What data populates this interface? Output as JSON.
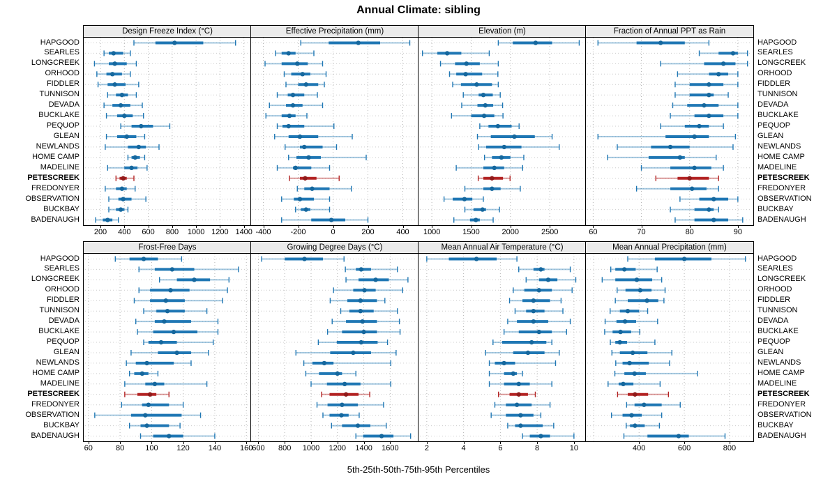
{
  "title": "Annual Climate: sibling",
  "caption": "5th-25th-50th-75th-95th Percentiles",
  "colors": {
    "series": "#1F77B4",
    "series_dot": "#15679D",
    "series_faint": "rgba(31,119,180,0.40)",
    "highlight": "#B22222",
    "highlight_dot": "#8F1A1A",
    "highlight_faint": "rgba(178,34,34,0.45)",
    "grid_line": "#b5b5b5",
    "row_line": "#cccccc",
    "header_bg": "#ebebeb",
    "border": "#000000"
  },
  "chart_data": {
    "type": "dotplot-interval",
    "percentiles": [
      5,
      25,
      50,
      75,
      95
    ],
    "stations": [
      "HAPGOOD",
      "SEARLES",
      "LONGCREEK",
      "ORHOOD",
      "FIDDLER",
      "TUNNISON",
      "DEVADA",
      "BUCKLAKE",
      "PEQUOP",
      "GLEAN",
      "NEWLANDS",
      "HOME CAMP",
      "MADELINE",
      "PETESCREEK",
      "FREDONYER",
      "OBSERVATION",
      "BUCKBAY",
      "BADENAUGH"
    ],
    "highlight_station": "PETESCREEK",
    "panels": [
      {
        "title": "Design Freeze Index (°C)",
        "row": 0,
        "col": 0,
        "xlim": [
          60,
          1460
        ],
        "ticks": [
          200,
          400,
          600,
          800,
          1000,
          1200,
          1400
        ],
        "values": [
          [
            480,
            660,
            820,
            1060,
            1330
          ],
          [
            230,
            270,
            310,
            390,
            450
          ],
          [
            150,
            270,
            320,
            420,
            500
          ],
          [
            170,
            250,
            300,
            380,
            450
          ],
          [
            180,
            260,
            320,
            410,
            520
          ],
          [
            260,
            330,
            380,
            430,
            500
          ],
          [
            230,
            300,
            370,
            450,
            550
          ],
          [
            250,
            340,
            400,
            470,
            560
          ],
          [
            370,
            460,
            540,
            640,
            780
          ],
          [
            250,
            340,
            420,
            500,
            570
          ],
          [
            240,
            430,
            520,
            580,
            690
          ],
          [
            430,
            460,
            490,
            530,
            570
          ],
          [
            260,
            400,
            460,
            510,
            590
          ],
          [
            330,
            360,
            390,
            420,
            480
          ],
          [
            240,
            330,
            380,
            420,
            490
          ],
          [
            270,
            350,
            390,
            460,
            580
          ],
          [
            270,
            330,
            370,
            400,
            430
          ],
          [
            160,
            220,
            260,
            300,
            350
          ]
        ]
      },
      {
        "title": "Effective Precipitation (mm)",
        "row": 0,
        "col": 1,
        "xlim": [
          -470,
          490
        ],
        "ticks": [
          -400,
          -200,
          0,
          200,
          400
        ],
        "values": [
          [
            -185,
            -25,
            145,
            270,
            440
          ],
          [
            -330,
            -295,
            -255,
            -215,
            -110
          ],
          [
            -390,
            -295,
            -205,
            -145,
            -60
          ],
          [
            -280,
            -240,
            -175,
            -130,
            -40
          ],
          [
            -270,
            -200,
            -155,
            -85,
            -50
          ],
          [
            -320,
            -260,
            -230,
            -165,
            -90
          ],
          [
            -365,
            -270,
            -230,
            -175,
            -60
          ],
          [
            -385,
            -295,
            -250,
            -215,
            -150
          ],
          [
            -320,
            -290,
            -255,
            -165,
            5
          ],
          [
            -335,
            -255,
            -190,
            -85,
            110
          ],
          [
            -275,
            -190,
            -165,
            -60,
            20
          ],
          [
            -255,
            -210,
            -140,
            -70,
            190
          ],
          [
            -320,
            -230,
            -215,
            -125,
            -20
          ],
          [
            -250,
            -190,
            -160,
            -95,
            35
          ],
          [
            -205,
            -165,
            -120,
            -20,
            105
          ],
          [
            -295,
            -225,
            -190,
            -110,
            -20
          ],
          [
            -215,
            -185,
            -155,
            -130,
            -20
          ],
          [
            -295,
            -125,
            -10,
            70,
            200
          ]
        ]
      },
      {
        "title": "Elevation (m)",
        "row": 0,
        "col": 2,
        "xlim": [
          830,
          2960
        ],
        "ticks": [
          1000,
          1500,
          2000,
          2500
        ],
        "values": [
          [
            1845,
            2030,
            2320,
            2530,
            2875
          ],
          [
            880,
            1070,
            1195,
            1375,
            1730
          ],
          [
            1110,
            1295,
            1440,
            1610,
            1845
          ],
          [
            1225,
            1310,
            1430,
            1640,
            1840
          ],
          [
            1265,
            1370,
            1570,
            1765,
            1845
          ],
          [
            1400,
            1595,
            1655,
            1775,
            1870
          ],
          [
            1380,
            1580,
            1680,
            1780,
            1900
          ],
          [
            1250,
            1500,
            1665,
            1795,
            1905
          ],
          [
            1610,
            1720,
            1840,
            2015,
            2110
          ],
          [
            1580,
            1750,
            2050,
            2310,
            2530
          ],
          [
            1595,
            1690,
            1920,
            2140,
            2620
          ],
          [
            1670,
            1765,
            1885,
            2000,
            2170
          ],
          [
            1310,
            1655,
            1795,
            1920,
            2155
          ],
          [
            1590,
            1655,
            1765,
            1905,
            1995
          ],
          [
            1420,
            1655,
            1765,
            1875,
            2125
          ],
          [
            1155,
            1265,
            1415,
            1515,
            1655
          ],
          [
            1420,
            1530,
            1645,
            1690,
            1860
          ],
          [
            1280,
            1485,
            1560,
            1610,
            1780
          ]
        ]
      },
      {
        "title": "Fraction of Annual PPT as Rain",
        "row": 0,
        "col": 3,
        "xlim": [
          58.5,
          93.2
        ],
        "ticks": [
          60,
          70,
          80,
          90
        ],
        "values": [
          [
            61,
            69,
            74,
            79,
            84
          ],
          [
            82,
            86,
            89,
            90,
            92
          ],
          [
            74,
            83,
            87,
            89.5,
            92
          ],
          [
            77.5,
            84,
            86,
            88,
            90
          ],
          [
            77,
            80,
            84,
            87,
            90
          ],
          [
            77,
            80,
            84,
            85,
            88
          ],
          [
            76.5,
            79.5,
            83,
            86,
            90
          ],
          [
            76,
            81,
            84,
            87,
            90
          ],
          [
            74,
            79,
            82,
            84,
            87
          ],
          [
            61,
            75,
            81,
            84,
            89.5
          ],
          [
            65,
            72,
            76,
            80,
            89
          ],
          [
            63,
            71.5,
            78,
            79,
            85.5
          ],
          [
            70,
            76,
            81,
            84.5,
            87
          ],
          [
            73,
            77.5,
            80,
            84,
            86
          ],
          [
            69,
            76,
            80.5,
            83.5,
            86
          ],
          [
            78,
            82,
            85,
            88,
            90
          ],
          [
            76,
            81,
            84,
            85,
            86
          ],
          [
            77,
            81,
            85,
            88,
            91
          ]
        ]
      },
      {
        "title": "Frost-Free Days",
        "row": 1,
        "col": 0,
        "xlim": [
          57,
          163
        ],
        "ticks": [
          60,
          80,
          100,
          120,
          140,
          160
        ],
        "values": [
          [
            77,
            86,
            95,
            104,
            119
          ],
          [
            92,
            102,
            113,
            127,
            155
          ],
          [
            105,
            116,
            127,
            137,
            149
          ],
          [
            92,
            99,
            112,
            124,
            148
          ],
          [
            89,
            99,
            109,
            121,
            145
          ],
          [
            95,
            103,
            110,
            121,
            135
          ],
          [
            90,
            102,
            108,
            125,
            142
          ],
          [
            91,
            101,
            114,
            129,
            142
          ],
          [
            95,
            98,
            106,
            116,
            139
          ],
          [
            87,
            104,
            116,
            125,
            136
          ],
          [
            84,
            90,
            97,
            114,
            125
          ],
          [
            86,
            89,
            94,
            98,
            104
          ],
          [
            83,
            96,
            102,
            108,
            135
          ],
          [
            83,
            91,
            99,
            103,
            111
          ],
          [
            81,
            94,
            98,
            111,
            120
          ],
          [
            64,
            87,
            96,
            119,
            131
          ],
          [
            86,
            93,
            97,
            111,
            118
          ],
          [
            93,
            101,
            111,
            120,
            140
          ]
        ]
      },
      {
        "title": "Growing Degree Days (°C)",
        "row": 1,
        "col": 1,
        "xlim": [
          545,
          1815
        ],
        "ticks": [
          600,
          800,
          1000,
          1200,
          1400,
          1600
        ],
        "values": [
          [
            625,
            800,
            950,
            1090,
            1250
          ],
          [
            1260,
            1340,
            1380,
            1455,
            1655
          ],
          [
            1265,
            1360,
            1490,
            1590,
            1735
          ],
          [
            1170,
            1320,
            1405,
            1490,
            1695
          ],
          [
            1145,
            1275,
            1375,
            1500,
            1560
          ],
          [
            1225,
            1290,
            1375,
            1475,
            1655
          ],
          [
            1160,
            1265,
            1390,
            1500,
            1670
          ],
          [
            1125,
            1235,
            1400,
            1500,
            1675
          ],
          [
            1055,
            1195,
            1380,
            1505,
            1580
          ],
          [
            885,
            1145,
            1320,
            1455,
            1645
          ],
          [
            945,
            1010,
            1100,
            1170,
            1605
          ],
          [
            960,
            1060,
            1200,
            1235,
            1340
          ],
          [
            1000,
            1120,
            1255,
            1375,
            1605
          ],
          [
            1080,
            1140,
            1265,
            1360,
            1445
          ],
          [
            1045,
            1125,
            1235,
            1355,
            1550
          ],
          [
            1090,
            1140,
            1230,
            1285,
            1365
          ],
          [
            1155,
            1235,
            1355,
            1450,
            1570
          ],
          [
            1340,
            1395,
            1535,
            1625,
            1755
          ]
        ]
      },
      {
        "title": "Mean Annual Air Temperature (°C)",
        "row": 1,
        "col": 2,
        "xlim": [
          1.55,
          10.65
        ],
        "ticks": [
          2,
          4,
          6,
          8,
          10
        ],
        "values": [
          [
            2.0,
            3.2,
            4.7,
            5.8,
            6.9
          ],
          [
            7.0,
            7.8,
            8.2,
            8.4,
            9.8
          ],
          [
            7.4,
            8.1,
            8.6,
            9.1,
            10.1
          ],
          [
            6.7,
            7.3,
            8.1,
            8.8,
            9.9
          ],
          [
            6.5,
            7.2,
            7.8,
            8.7,
            9.3
          ],
          [
            6.8,
            7.4,
            7.8,
            8.4,
            9.4
          ],
          [
            6.4,
            6.9,
            7.8,
            8.6,
            9.8
          ],
          [
            6.2,
            7.0,
            8.1,
            8.8,
            9.6
          ],
          [
            5.6,
            6.1,
            7.7,
            8.5,
            8.8
          ],
          [
            5.2,
            6.7,
            7.5,
            8.4,
            9.2
          ],
          [
            5.4,
            5.7,
            6.2,
            6.8,
            9.0
          ],
          [
            5.4,
            6.2,
            6.7,
            6.9,
            7.2
          ],
          [
            5.4,
            6.2,
            7.0,
            7.6,
            8.8
          ],
          [
            5.9,
            6.5,
            7.0,
            7.5,
            7.9
          ],
          [
            5.7,
            6.3,
            6.9,
            7.7,
            8.7
          ],
          [
            5.5,
            6.3,
            7.1,
            7.8,
            8.2
          ],
          [
            6.4,
            6.8,
            7.1,
            8.3,
            8.9
          ],
          [
            7.2,
            7.6,
            8.2,
            8.7,
            10.0
          ]
        ]
      },
      {
        "title": "Mean Annual Precipitation (mm)",
        "row": 1,
        "col": 3,
        "xlim": [
          165,
          905
        ],
        "ticks": [
          400,
          600,
          800
        ],
        "grid": [
          200,
          400,
          600,
          800
        ],
        "values": [
          [
            350,
            470,
            600,
            720,
            870
          ],
          [
            275,
            295,
            335,
            385,
            480
          ],
          [
            237,
            295,
            390,
            458,
            500
          ],
          [
            303,
            340,
            405,
            455,
            515
          ],
          [
            295,
            350,
            435,
            485,
            510
          ],
          [
            272,
            315,
            350,
            400,
            438
          ],
          [
            250,
            300,
            338,
            387,
            482
          ],
          [
            248,
            283,
            318,
            365,
            403
          ],
          [
            273,
            295,
            315,
            347,
            470
          ],
          [
            280,
            315,
            372,
            437,
            545
          ],
          [
            297,
            327,
            358,
            443,
            535
          ],
          [
            293,
            335,
            380,
            430,
            658
          ],
          [
            263,
            310,
            330,
            375,
            493
          ],
          [
            305,
            350,
            382,
            440,
            530
          ],
          [
            345,
            380,
            422,
            500,
            582
          ],
          [
            278,
            327,
            367,
            412,
            500
          ],
          [
            343,
            360,
            382,
            425,
            490
          ],
          [
            333,
            437,
            575,
            620,
            780
          ]
        ]
      }
    ]
  }
}
